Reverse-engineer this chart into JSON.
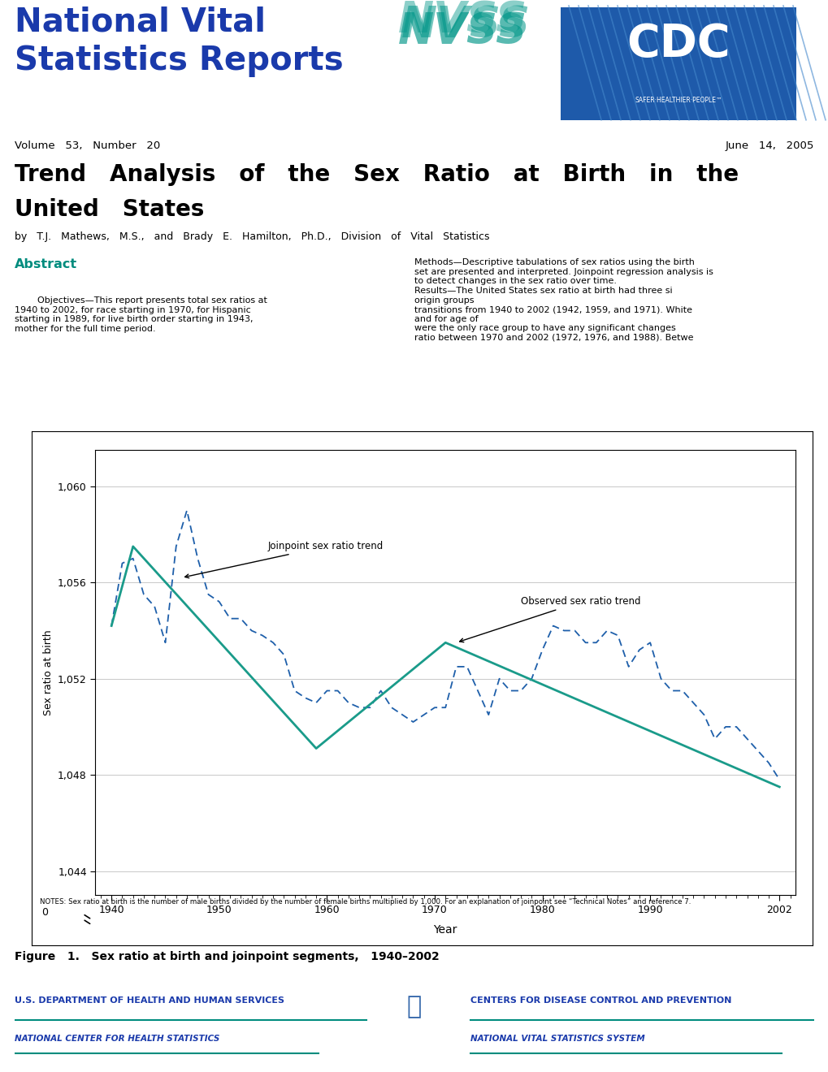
{
  "title": "Trend Analysis of the Sex Ratio at Birth in the United States",
  "volume_text": "Volume   53,   Number   20",
  "date_text": "June   14,   2005",
  "authors": "by   T.J.   Mathews,   M.S.,   and   Brady   E.   Hamilton,   Ph.D.,   Division   of   Vital   Statistics",
  "abstract_title": "Abstract",
  "figure_caption": "Figure   1.   Sex ratio at birth and joinpoint segments,   1940–2002",
  "notes_text": "NOTES: Sex ratio at birth is the number of male births divided by the number of female births multiplied by 1,000. For an explanation of joinpoint see “Technical Notes” and reference 7.",
  "xlabel": "Year",
  "ylabel": "Sex ratio at birth",
  "ytick_positions": [
    1044,
    1048,
    1052,
    1056,
    1060
  ],
  "ytick_labels": [
    "1,044",
    "1,048",
    "1,052",
    "1,056",
    "1,060"
  ],
  "xtick_positions": [
    1940,
    1950,
    1960,
    1970,
    1980,
    1990,
    2002
  ],
  "xtick_labels": [
    "1940",
    "1950",
    "1960",
    "1970",
    "1980",
    "1990",
    "2002"
  ],
  "observed_color": "#1e5faa",
  "joinpoint_color": "#1a9b8a",
  "observed_years": [
    1940,
    1941,
    1942,
    1943,
    1944,
    1945,
    1946,
    1947,
    1948,
    1949,
    1950,
    1951,
    1952,
    1953,
    1954,
    1955,
    1956,
    1957,
    1958,
    1959,
    1960,
    1961,
    1962,
    1963,
    1964,
    1965,
    1966,
    1967,
    1968,
    1969,
    1970,
    1971,
    1972,
    1973,
    1974,
    1975,
    1976,
    1977,
    1978,
    1979,
    1980,
    1981,
    1982,
    1983,
    1984,
    1985,
    1986,
    1987,
    1988,
    1989,
    1990,
    1991,
    1992,
    1993,
    1994,
    1995,
    1996,
    1997,
    1998,
    1999,
    2000,
    2001,
    2002
  ],
  "observed_values": [
    1054.2,
    1056.8,
    1057.0,
    1055.5,
    1055.0,
    1053.5,
    1057.5,
    1059.0,
    1057.0,
    1055.5,
    1055.2,
    1054.5,
    1054.5,
    1054.0,
    1053.8,
    1053.5,
    1053.0,
    1051.5,
    1051.2,
    1051.0,
    1051.5,
    1051.5,
    1051.0,
    1050.8,
    1050.8,
    1051.5,
    1050.8,
    1050.5,
    1050.2,
    1050.5,
    1050.8,
    1050.8,
    1052.5,
    1052.5,
    1051.5,
    1050.5,
    1052.0,
    1051.5,
    1051.5,
    1052.0,
    1053.2,
    1054.2,
    1054.0,
    1054.0,
    1053.5,
    1053.5,
    1054.0,
    1053.8,
    1052.5,
    1053.2,
    1053.5,
    1052.0,
    1051.5,
    1051.5,
    1051.0,
    1050.5,
    1049.5,
    1050.0,
    1050.0,
    1049.5,
    1049.0,
    1048.5,
    1047.8
  ],
  "joinpoint_years": [
    1940,
    1942,
    1959,
    1971,
    2002
  ],
  "joinpoint_values": [
    1054.2,
    1057.5,
    1049.1,
    1053.5,
    1047.5
  ],
  "bottom_left_text": "U.S. DEPARTMENT OF HEALTH AND HUMAN SERVICES",
  "bottom_left_text2": "NATIONAL CENTER FOR HEALTH STATISTICS",
  "bottom_right_text": "CENTERS FOR DISEASE CONTROL AND PREVENTION",
  "bottom_right_text2": "NATIONAL VITAL STATISTICS SYSTEM",
  "header_color": "#1a3aab",
  "nvss_color": "#009688",
  "teal_color": "#008c7e",
  "annotation1_text": "Joinpoint sex ratio trend",
  "annotation2_text": "Observed sex ratio trend",
  "bg_color": "#ffffff",
  "grid_color": "#c8c8c8"
}
